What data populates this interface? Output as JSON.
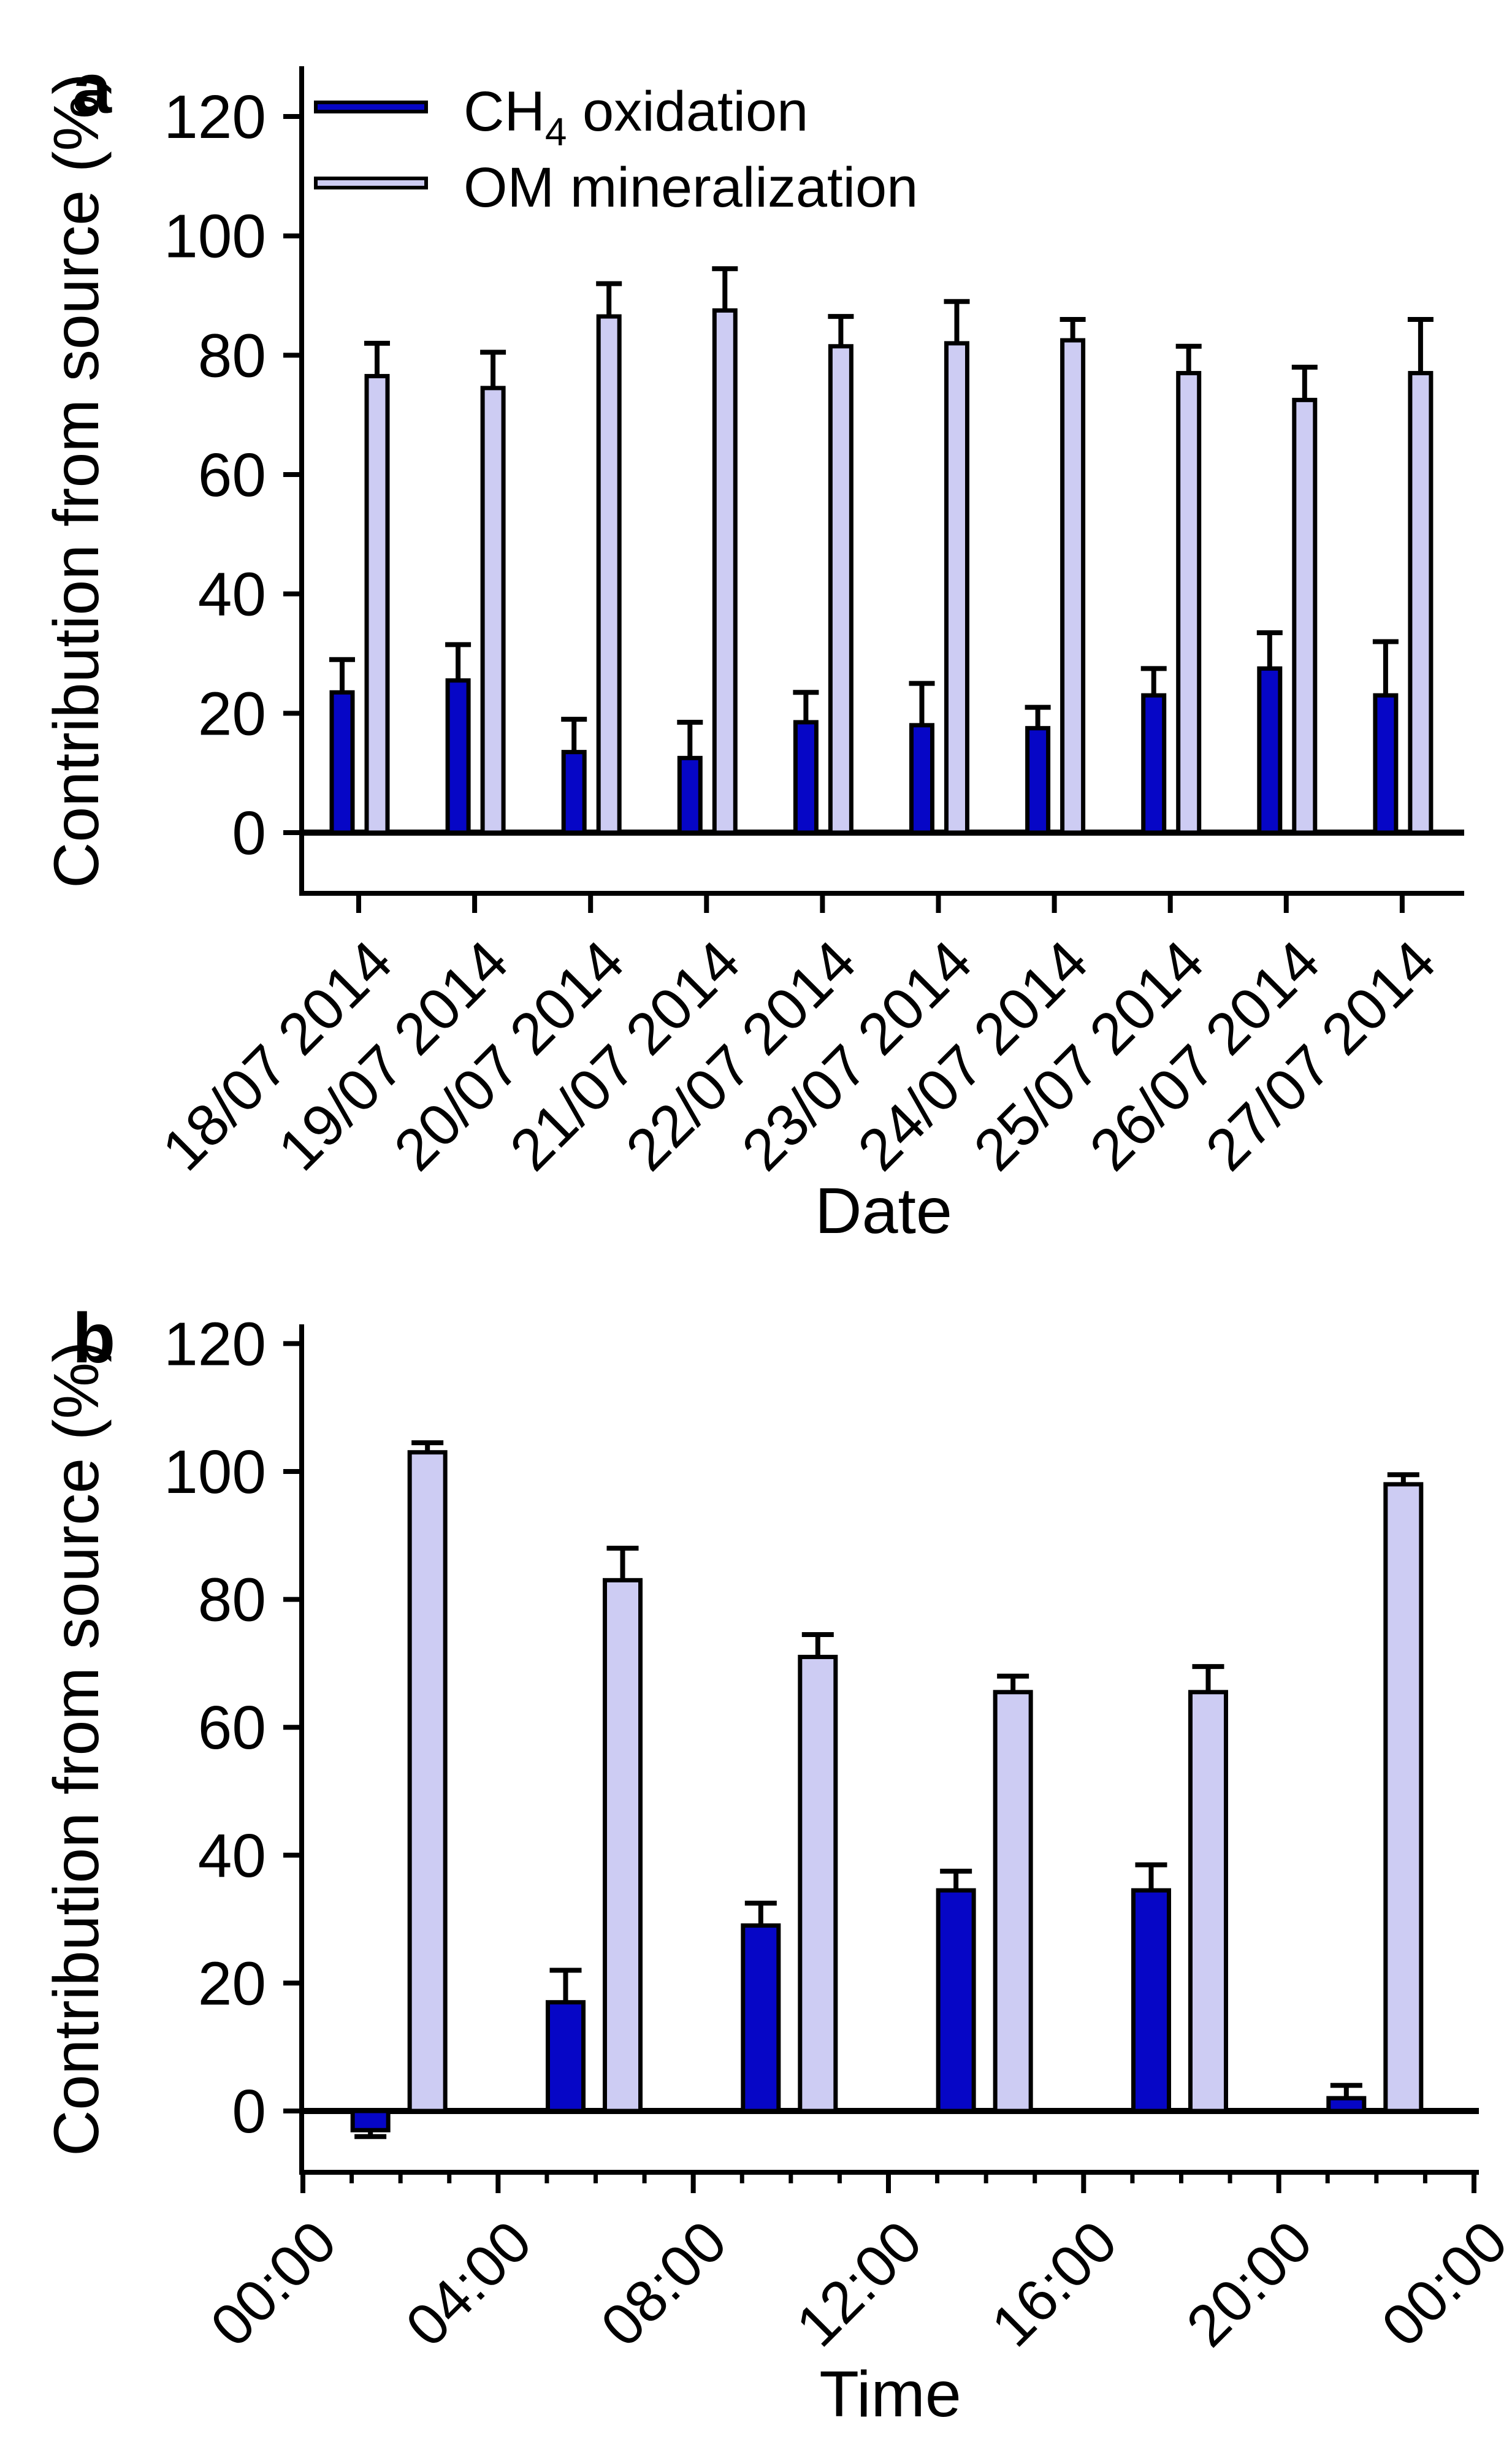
{
  "figure": {
    "panel_a_letter": "a",
    "panel_b_letter": "b",
    "y_axis_title": "Contribution from source (%)",
    "legend": {
      "items": [
        {
          "prefix": "CH",
          "sub": "4",
          "suffix": " oxidation",
          "color_key": "ch4"
        },
        {
          "prefix": "OM mineralization",
          "sub": "",
          "suffix": "",
          "color_key": "om"
        }
      ]
    }
  },
  "colors": {
    "ch4": "#0606c6",
    "om": "#cdccf3",
    "axis": "#000000",
    "background": "#ffffff"
  },
  "chart_data": [
    {
      "panel": "a",
      "type": "bar",
      "title": "",
      "xlabel": "Date",
      "ylabel": "Contribution from source (%)",
      "categories": [
        "18/07 2014",
        "19/07 2014",
        "20/07 2014",
        "21/07 2014",
        "22/07 2014",
        "23/07 2014",
        "24/07 2014",
        "25/07 2014",
        "26/07 2014",
        "27/07 2014"
      ],
      "yticks": [
        0,
        20,
        40,
        60,
        80,
        100,
        120
      ],
      "ylim": [
        -10,
        128
      ],
      "grid": false,
      "legend_position": "top-left-inside",
      "error_bars": "upper-one-sided",
      "series": [
        {
          "name": "CH4 oxidation",
          "values": [
            23.5,
            25.5,
            13.5,
            12.5,
            18.5,
            18,
            17.5,
            23,
            27.5,
            23
          ],
          "errors": [
            5.5,
            6,
            5.5,
            6,
            5,
            7,
            3.5,
            4.5,
            6,
            9
          ]
        },
        {
          "name": "OM mineralization",
          "values": [
            76.5,
            74.5,
            86.5,
            87.5,
            81.5,
            82,
            82.5,
            77,
            72.5,
            77
          ],
          "errors": [
            5.5,
            6,
            5.5,
            7,
            5,
            7,
            3.5,
            4.5,
            5.5,
            9
          ]
        }
      ]
    },
    {
      "panel": "b",
      "type": "bar",
      "title": "",
      "xlabel": "Time",
      "ylabel": "Contribution from source (%)",
      "x_hours": [
        2,
        6,
        10,
        14,
        18,
        22
      ],
      "x_tick_labels": [
        "00:00",
        "04:00",
        "08:00",
        "12:00",
        "16:00",
        "20:00",
        "00:00"
      ],
      "x_tick_hours": [
        0,
        4,
        8,
        12,
        16,
        20,
        24
      ],
      "minor_tick_every_hours": 1,
      "yticks": [
        0,
        20,
        40,
        60,
        80,
        100,
        120
      ],
      "ylim": [
        -13,
        123
      ],
      "grid": false,
      "error_bars": "outward-one-sided",
      "series": [
        {
          "name": "CH4 oxidation",
          "values": [
            -3,
            17,
            29,
            34.5,
            34.5,
            2
          ],
          "errors": [
            1,
            5,
            3.5,
            3,
            4,
            2
          ]
        },
        {
          "name": "OM mineralization",
          "values": [
            103,
            83,
            71,
            65.5,
            65.5,
            98
          ],
          "errors": [
            1.5,
            5,
            3.5,
            2.5,
            4,
            1.5
          ]
        }
      ]
    }
  ]
}
